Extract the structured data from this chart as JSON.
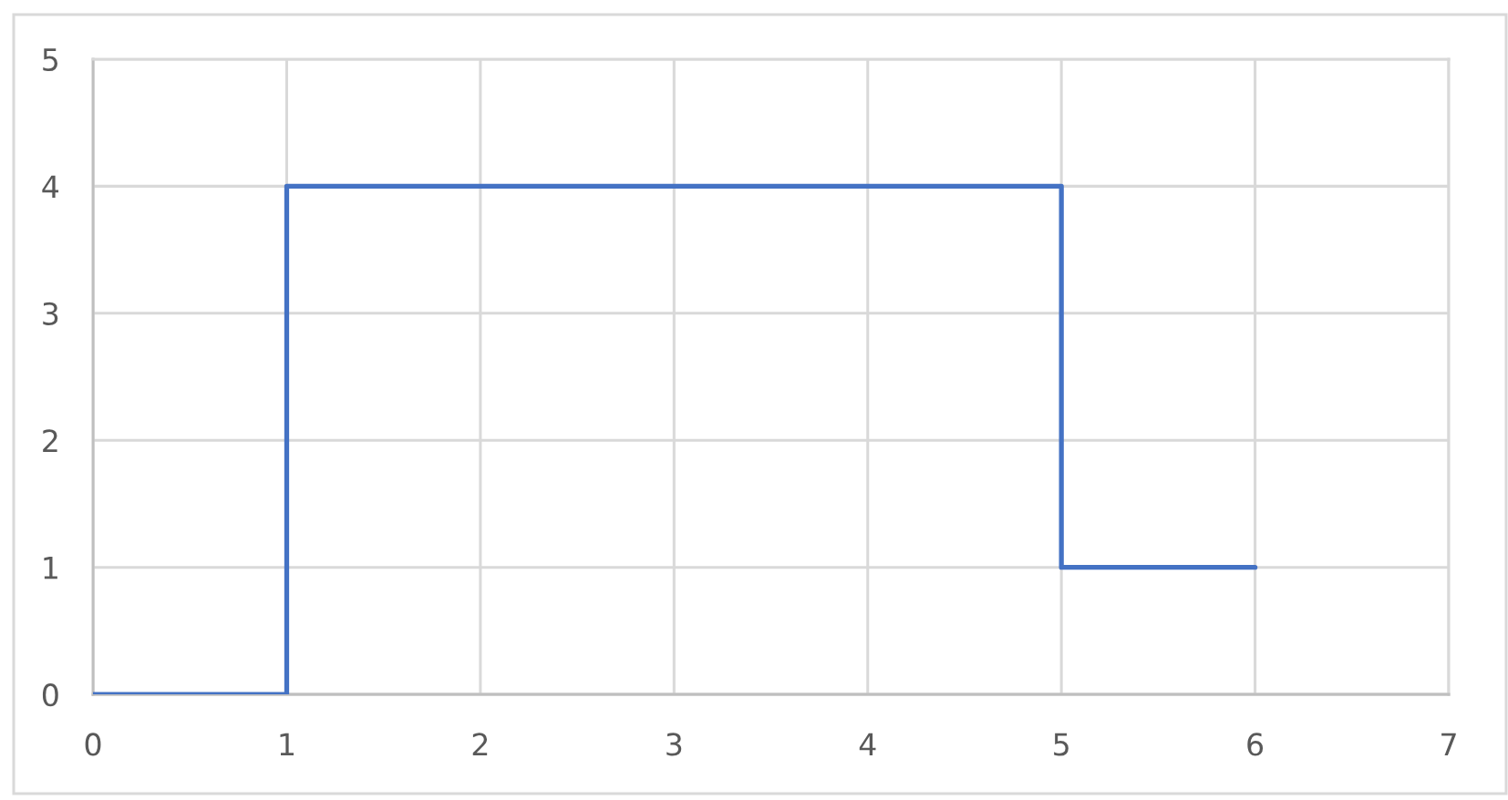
{
  "chart_data": {
    "type": "line",
    "x": [
      0,
      1,
      1,
      5,
      5,
      6
    ],
    "series": [
      {
        "color": "#4472c4",
        "values": [
          0,
          0,
          4,
          4,
          1,
          1
        ]
      }
    ],
    "xlim": [
      0,
      7
    ],
    "xticks": [
      0,
      1,
      2,
      3,
      4,
      5,
      6,
      7
    ],
    "ylim": [
      0,
      5
    ],
    "yticks": [
      0,
      1,
      2,
      3,
      4,
      5
    ],
    "grid": true,
    "marker": "none",
    "line_style": "solid"
  }
}
